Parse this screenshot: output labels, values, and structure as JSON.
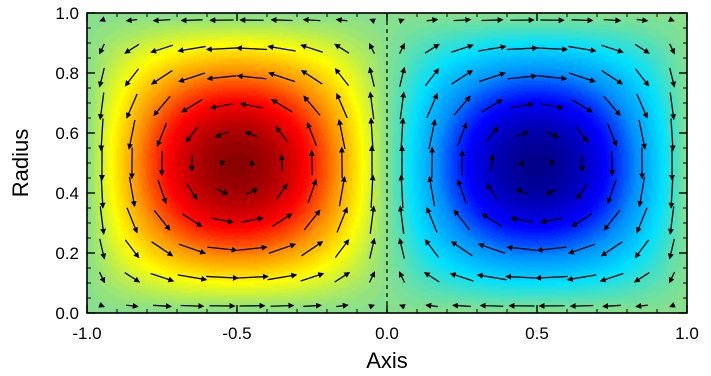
{
  "chart_data": {
    "type": "heatmap",
    "title": "",
    "xlabel": "Axis",
    "ylabel": "Radius",
    "xlim": [
      -1.0,
      1.0
    ],
    "ylim": [
      0.0,
      1.0
    ],
    "xticks": [
      -1.0,
      -0.5,
      0.0,
      0.5,
      1.0
    ],
    "yticks": [
      0.0,
      0.2,
      0.4,
      0.6,
      0.8,
      1.0
    ],
    "xtick_labels": [
      "-1.0",
      "-0.5",
      "0.0",
      "0.5",
      "1.0"
    ],
    "ytick_labels": [
      "0.0",
      "0.2",
      "0.4",
      "0.6",
      "0.8",
      "1.0"
    ],
    "field": {
      "description_kind": "two counter-rotating cells",
      "cells": [
        {
          "center": [
            -0.5,
            0.47
          ],
          "sign": 1,
          "peak_color": "#8b0000"
        },
        {
          "center": [
            0.5,
            0.47
          ],
          "sign": -1,
          "peak_color": "#00008b"
        }
      ],
      "background_color": "#86e08e",
      "colormap": [
        "#00008b",
        "#0000ff",
        "#0090ff",
        "#00e0ff",
        "#86e08e",
        "#ffff00",
        "#ff9000",
        "#ff0000",
        "#8b0000"
      ]
    },
    "vectors": {
      "nx": 20,
      "ny": 11,
      "color": "#000000",
      "rotation": "left cell clockwise, right cell counter-clockwise; flow leftward near Radius 0 on both sides, upward along Axis -1, downward along Axis 0, upward along Axis 1"
    },
    "center_dashed_line_x": 0.0
  }
}
